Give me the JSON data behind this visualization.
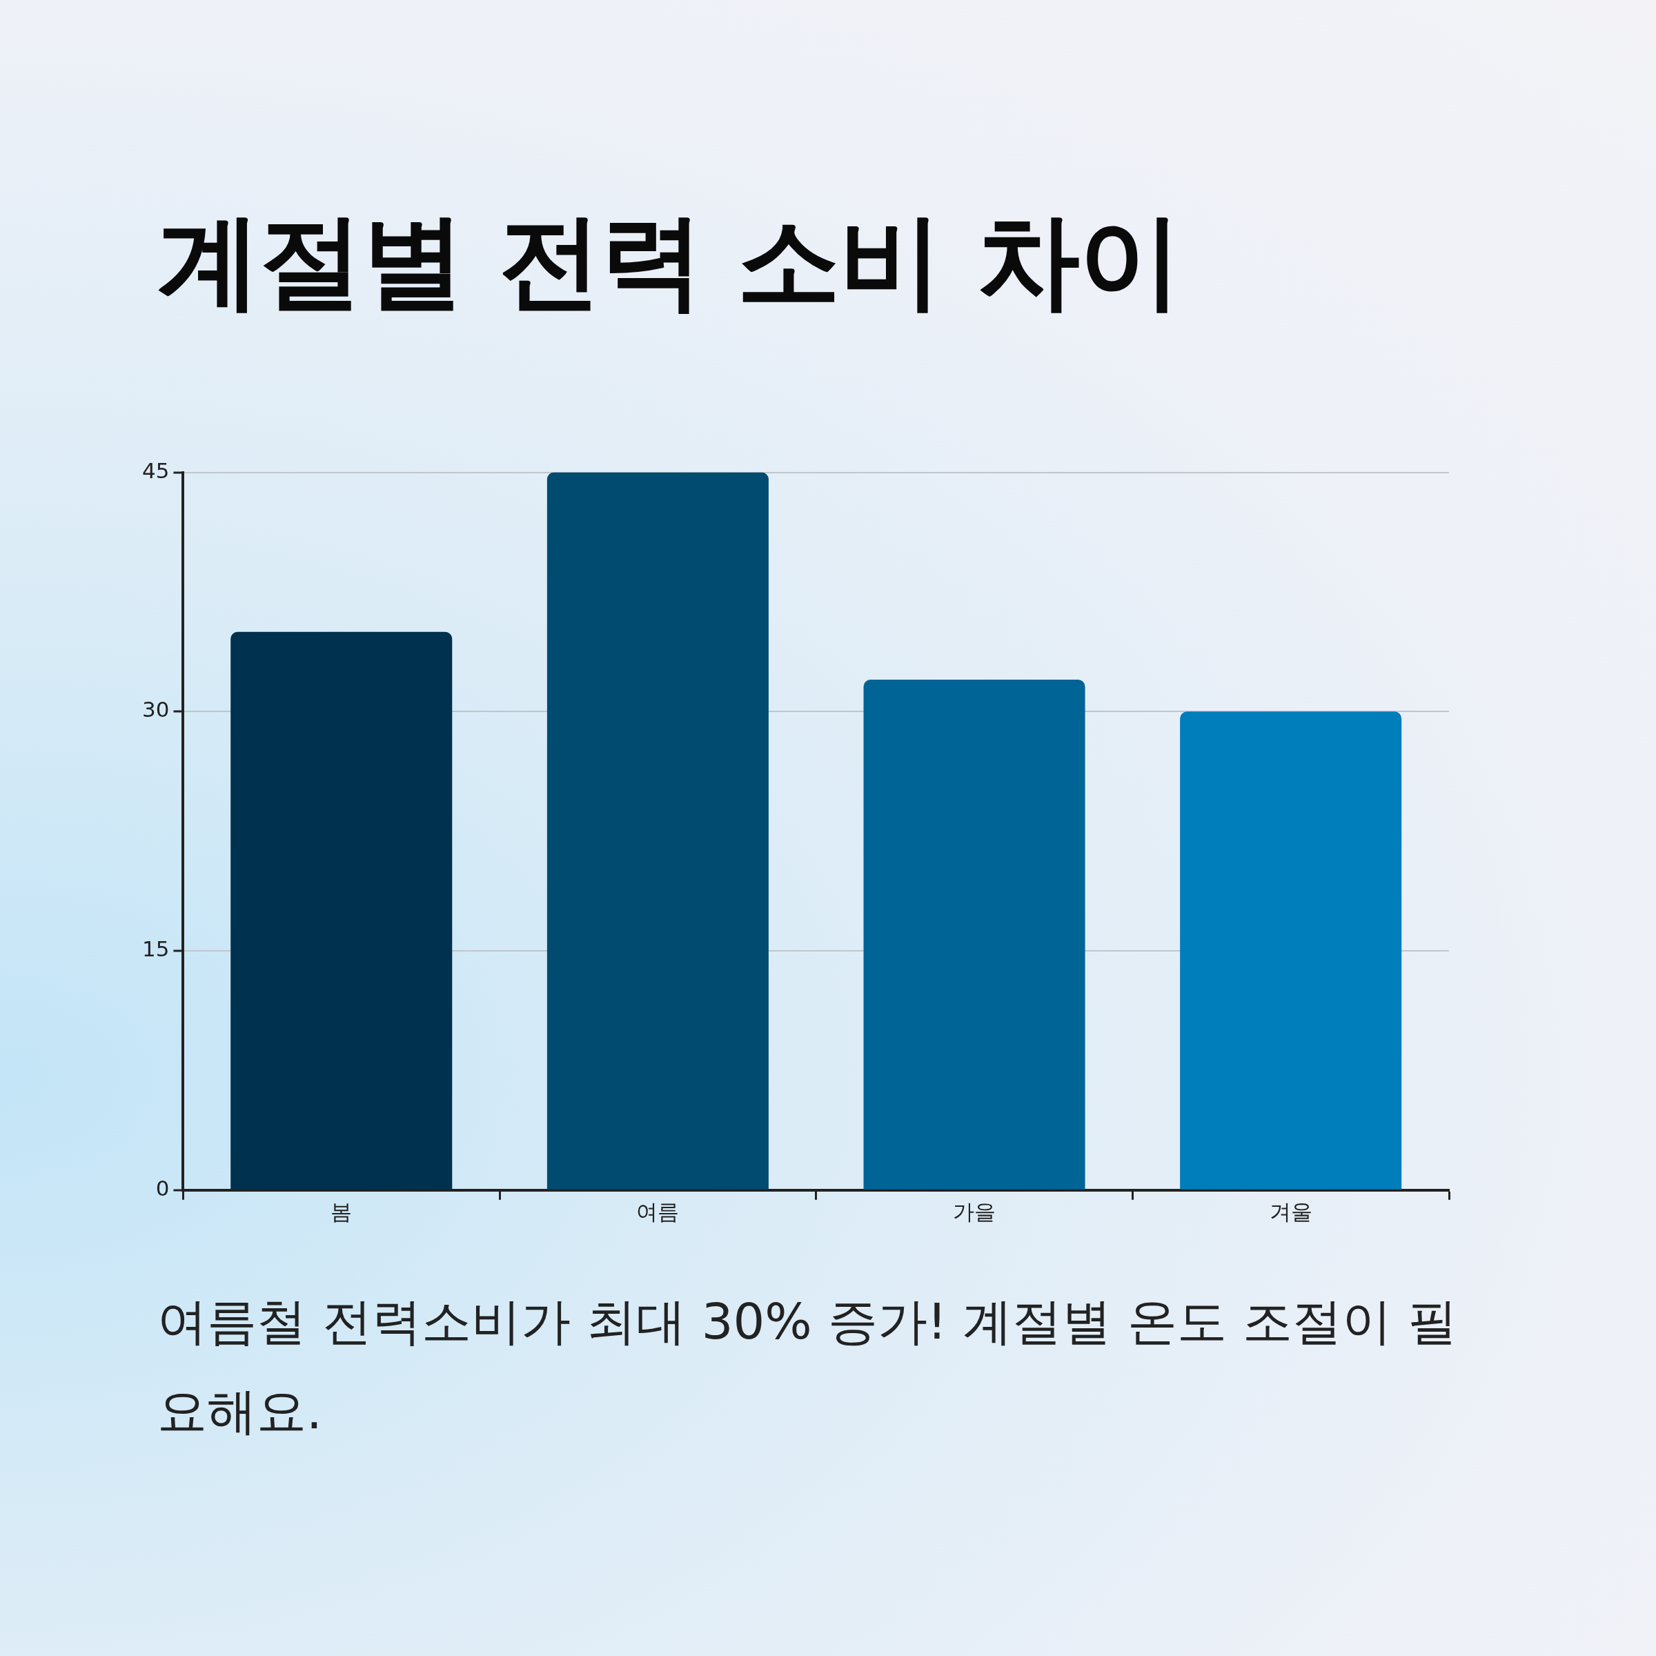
{
  "chart_data": {
    "type": "bar",
    "title": "계절별 전력 소비 차이",
    "categories": [
      "봄",
      "여름",
      "가을",
      "겨울"
    ],
    "values": [
      35,
      45,
      32,
      30
    ],
    "colors": [
      "#00314f",
      "#024b70",
      "#006496",
      "#007dbb"
    ],
    "ylim": [
      0,
      45
    ],
    "yticks": [
      0,
      15,
      30,
      45
    ],
    "grid": "y",
    "legend": false,
    "annotations": [
      "여름철 전력소비가 최대 30% 증가! 계절별 온도 조절이 필요해요."
    ]
  }
}
